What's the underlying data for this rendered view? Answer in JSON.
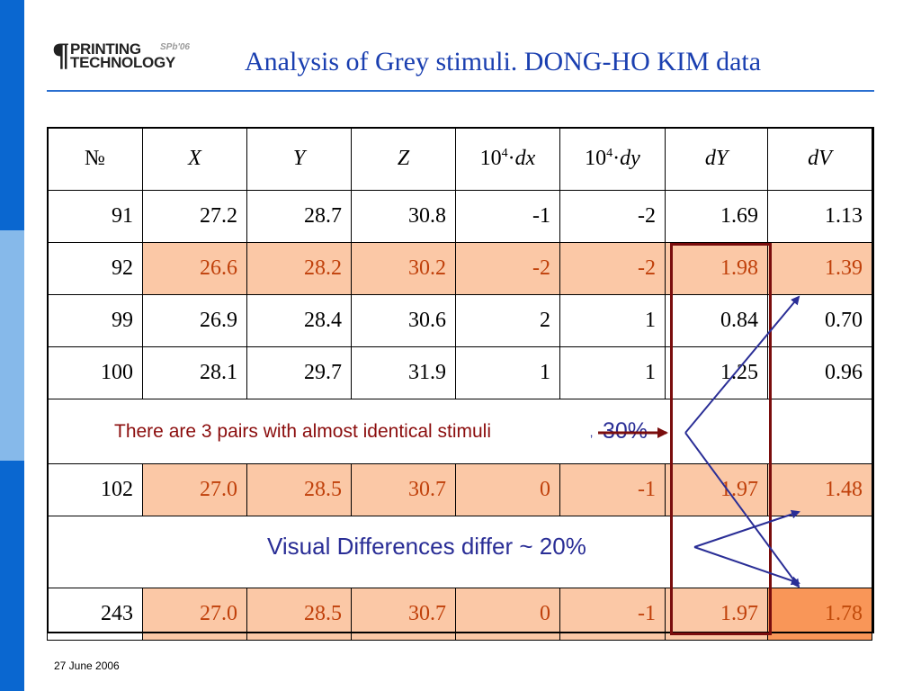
{
  "logo": {
    "pilcrow": "¶",
    "line1": "PRINTING",
    "line2": "TECHNOLOGY",
    "tag": "SPb'06"
  },
  "title": "Analysis of Grey stimuli. DONG-HO KIM data",
  "table": {
    "headers": [
      "№",
      "X",
      "Y",
      "Z",
      "10",
      "10",
      "dY",
      "dV"
    ],
    "header_exp": "4",
    "header_dx": "dx",
    "header_dy": "dy",
    "rows": [
      [
        "91",
        "27.2",
        "28.7",
        "30.8",
        "-1",
        "-2",
        "1.69",
        "1.13"
      ],
      [
        "92",
        "26.6",
        "28.2",
        "30.2",
        "-2",
        "-2",
        "1.98",
        "1.39"
      ],
      [
        "99",
        "26.9",
        "28.4",
        "30.6",
        "2",
        "1",
        "0.84",
        "0.70"
      ],
      [
        "100",
        "28.1",
        "29.7",
        "31.9",
        "1",
        "1",
        "1.25",
        "0.96"
      ],
      [
        "102",
        "27.0",
        "28.5",
        "30.7",
        "0",
        "-1",
        "1.97",
        "1.48"
      ],
      [
        "243",
        "27.0",
        "28.5",
        "30.7",
        "0",
        "-1",
        "1.97",
        "1.78"
      ]
    ]
  },
  "annotations": {
    "note1": "There are 3 pairs with almost identical stimuli",
    "tick": "‚",
    "pct30": "30%",
    "note2": "Visual Differences differ ~ 20%"
  },
  "colors": {
    "highlight": "#fbc8a6",
    "strong": "#f99658",
    "box": "#7a0d0d",
    "arrow": "#2a2e96",
    "title": "#1a3fb0"
  },
  "footer": {
    "date": "27 June 2006"
  }
}
